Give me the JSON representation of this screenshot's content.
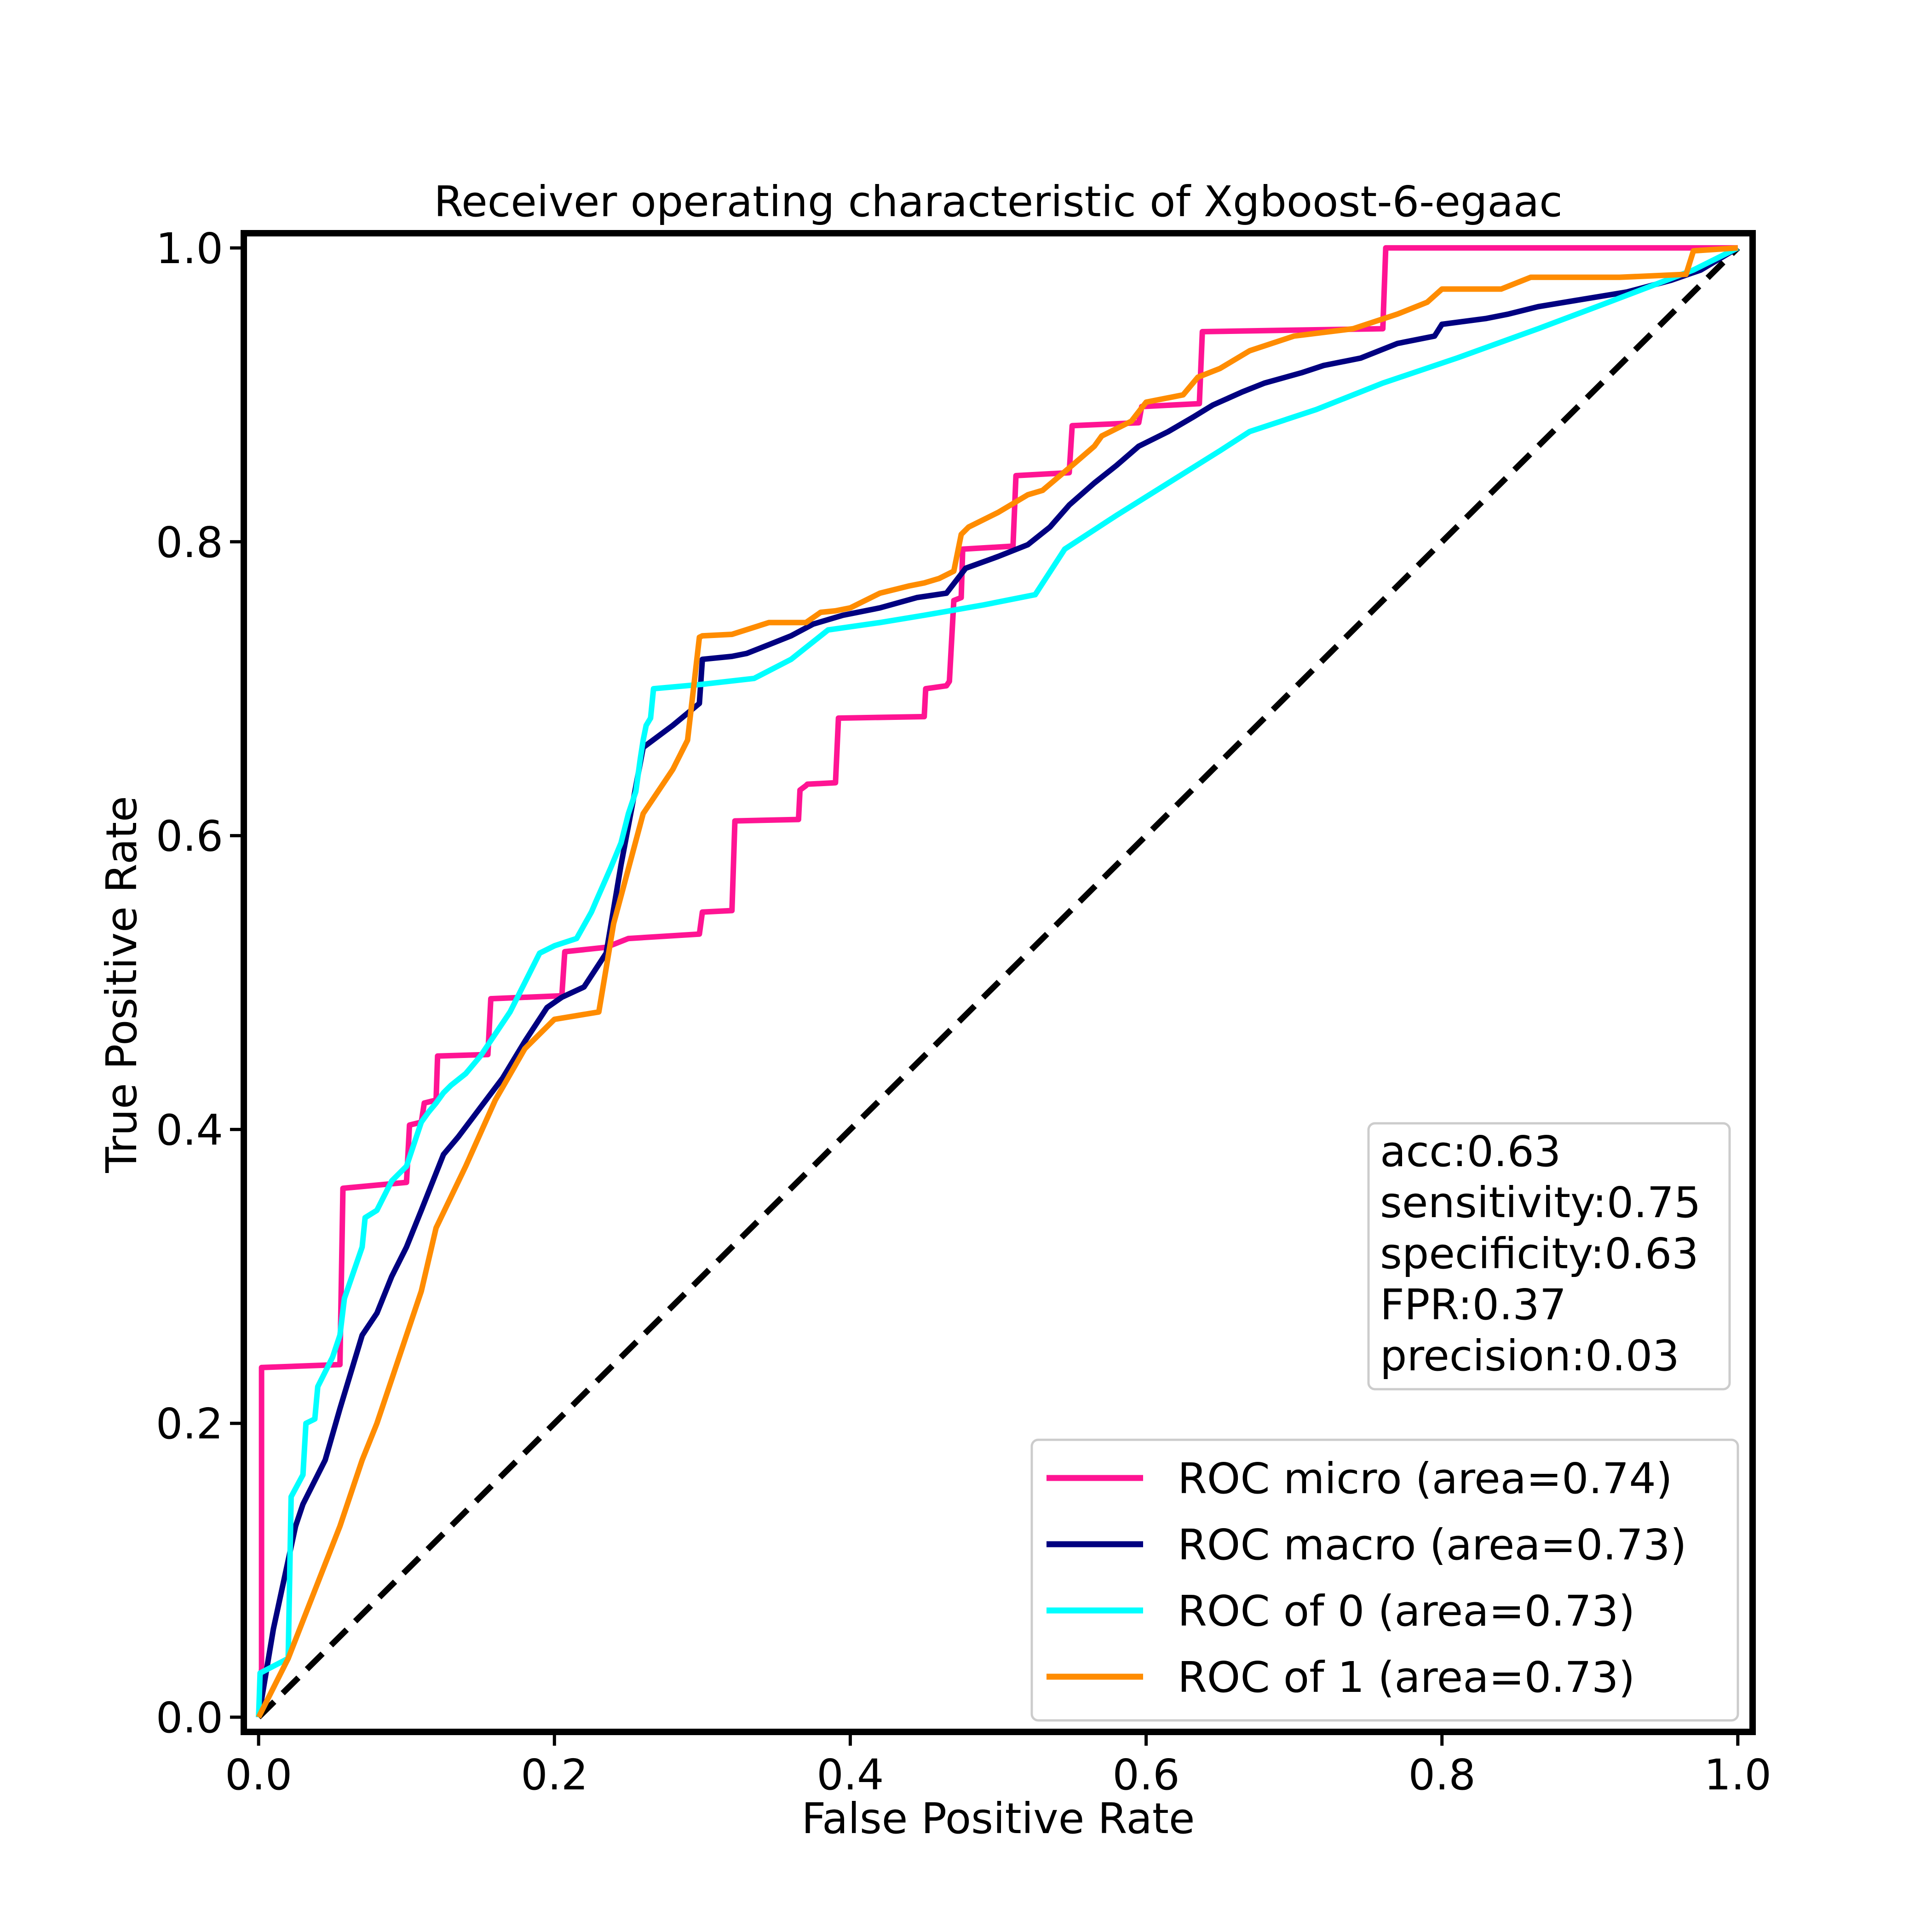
{
  "chart_data": {
    "type": "line",
    "title": "Receiver operating characteristic of Xgboost-6-egaac",
    "xlabel": "False Positive Rate",
    "ylabel": "True Positive Rate",
    "xlim": [
      -0.01,
      1.01
    ],
    "ylim": [
      -0.01,
      1.01
    ],
    "grid": false,
    "xticks": [
      "0.0",
      "0.2",
      "0.4",
      "0.6",
      "0.8",
      "1.0"
    ],
    "yticks": [
      "0.0",
      "0.2",
      "0.4",
      "0.6",
      "0.8",
      "1.0"
    ],
    "legend_position": "lower-right",
    "stats_box_position": "lower-right",
    "stats": [
      "acc:0.63",
      "sensitivity:0.75",
      "specificity:0.63",
      "FPR:0.37",
      "precision:0.03"
    ],
    "reference_line": {
      "x": [
        0,
        1
      ],
      "y": [
        0,
        1
      ],
      "color": "#000000",
      "style": "dashed"
    },
    "series": [
      {
        "name": "ROC micro (area=0.74)",
        "color": "#ff1493",
        "x": [
          0,
          0.002,
          0.002,
          0.055,
          0.057,
          0.1,
          0.102,
          0.11,
          0.112,
          0.12,
          0.121,
          0.155,
          0.157,
          0.205,
          0.207,
          0.235,
          0.25,
          0.298,
          0.3,
          0.32,
          0.322,
          0.365,
          0.366,
          0.37,
          0.371,
          0.39,
          0.392,
          0.45,
          0.451,
          0.465,
          0.467,
          0.47,
          0.475,
          0.476,
          0.51,
          0.512,
          0.548,
          0.55,
          0.595,
          0.597,
          0.636,
          0.638,
          0.76,
          0.762,
          1.0
        ],
        "y": [
          0,
          0.033,
          0.238,
          0.24,
          0.36,
          0.364,
          0.403,
          0.405,
          0.418,
          0.42,
          0.45,
          0.451,
          0.489,
          0.491,
          0.521,
          0.524,
          0.53,
          0.533,
          0.548,
          0.549,
          0.61,
          0.611,
          0.631,
          0.634,
          0.635,
          0.636,
          0.68,
          0.681,
          0.7,
          0.702,
          0.705,
          0.76,
          0.762,
          0.795,
          0.797,
          0.845,
          0.847,
          0.879,
          0.881,
          0.892,
          0.894,
          0.943,
          0.945,
          1.0,
          1.0
        ]
      },
      {
        "name": "ROC macro (area=0.73)",
        "color": "#000080",
        "x": [
          0,
          0.01,
          0.025,
          0.03,
          0.045,
          0.055,
          0.07,
          0.08,
          0.09,
          0.1,
          0.11,
          0.125,
          0.135,
          0.15,
          0.165,
          0.18,
          0.195,
          0.205,
          0.22,
          0.235,
          0.245,
          0.26,
          0.28,
          0.298,
          0.3,
          0.32,
          0.33,
          0.345,
          0.36,
          0.375,
          0.395,
          0.42,
          0.445,
          0.465,
          0.478,
          0.5,
          0.52,
          0.535,
          0.548,
          0.565,
          0.58,
          0.595,
          0.615,
          0.632,
          0.645,
          0.665,
          0.68,
          0.705,
          0.72,
          0.745,
          0.77,
          0.795,
          0.8,
          0.83,
          0.845,
          0.865,
          0.895,
          0.925,
          0.955,
          0.975,
          1.0
        ],
        "y": [
          0,
          0.06,
          0.13,
          0.145,
          0.175,
          0.21,
          0.26,
          0.275,
          0.3,
          0.32,
          0.345,
          0.383,
          0.395,
          0.415,
          0.435,
          0.46,
          0.483,
          0.49,
          0.497,
          0.52,
          0.58,
          0.66,
          0.675,
          0.69,
          0.72,
          0.722,
          0.724,
          0.73,
          0.736,
          0.744,
          0.75,
          0.755,
          0.762,
          0.765,
          0.782,
          0.79,
          0.798,
          0.81,
          0.825,
          0.84,
          0.852,
          0.865,
          0.875,
          0.885,
          0.893,
          0.902,
          0.908,
          0.915,
          0.92,
          0.925,
          0.935,
          0.94,
          0.948,
          0.952,
          0.955,
          0.96,
          0.965,
          0.97,
          0.978,
          0.985,
          1.0
        ]
      },
      {
        "name": "ROC of 0 (area=0.73)",
        "color": "#00ffff",
        "x": [
          0,
          0.001,
          0.02,
          0.022,
          0.03,
          0.032,
          0.038,
          0.04,
          0.05,
          0.055,
          0.058,
          0.07,
          0.072,
          0.08,
          0.09,
          0.095,
          0.1,
          0.105,
          0.11,
          0.115,
          0.12,
          0.125,
          0.13,
          0.14,
          0.15,
          0.16,
          0.17,
          0.18,
          0.19,
          0.2,
          0.215,
          0.225,
          0.228,
          0.238,
          0.245,
          0.25,
          0.255,
          0.258,
          0.26,
          0.262,
          0.265,
          0.267,
          0.3,
          0.335,
          0.36,
          0.385,
          0.42,
          0.45,
          0.49,
          0.525,
          0.545,
          0.58,
          0.615,
          0.65,
          0.67,
          0.715,
          0.76,
          0.81,
          0.865,
          0.91,
          0.97,
          1.0
        ],
        "y": [
          0,
          0.03,
          0.04,
          0.15,
          0.165,
          0.2,
          0.203,
          0.225,
          0.245,
          0.26,
          0.285,
          0.32,
          0.34,
          0.345,
          0.365,
          0.37,
          0.375,
          0.39,
          0.405,
          0.412,
          0.418,
          0.425,
          0.43,
          0.438,
          0.45,
          0.465,
          0.48,
          0.5,
          0.52,
          0.525,
          0.53,
          0.548,
          0.555,
          0.578,
          0.595,
          0.615,
          0.63,
          0.652,
          0.665,
          0.675,
          0.68,
          0.7,
          0.703,
          0.707,
          0.72,
          0.74,
          0.745,
          0.75,
          0.757,
          0.764,
          0.795,
          0.818,
          0.84,
          0.862,
          0.875,
          0.89,
          0.908,
          0.925,
          0.945,
          0.962,
          0.985,
          1.0
        ]
      },
      {
        "name": "ROC of 1 (area=0.73)",
        "color": "#ff8c00",
        "x": [
          0,
          0.02,
          0.055,
          0.07,
          0.08,
          0.09,
          0.1,
          0.11,
          0.12,
          0.14,
          0.16,
          0.18,
          0.2,
          0.23,
          0.24,
          0.26,
          0.28,
          0.29,
          0.298,
          0.3,
          0.32,
          0.345,
          0.37,
          0.38,
          0.39,
          0.4,
          0.42,
          0.44,
          0.45,
          0.46,
          0.47,
          0.475,
          0.48,
          0.5,
          0.52,
          0.53,
          0.55,
          0.565,
          0.57,
          0.58,
          0.59,
          0.6,
          0.625,
          0.635,
          0.65,
          0.67,
          0.7,
          0.74,
          0.77,
          0.79,
          0.8,
          0.84,
          0.86,
          0.92,
          0.965,
          0.97,
          1.0
        ],
        "y": [
          0,
          0.04,
          0.13,
          0.175,
          0.2,
          0.23,
          0.26,
          0.29,
          0.333,
          0.375,
          0.42,
          0.455,
          0.475,
          0.48,
          0.54,
          0.615,
          0.645,
          0.665,
          0.735,
          0.736,
          0.737,
          0.745,
          0.745,
          0.752,
          0.753,
          0.755,
          0.765,
          0.77,
          0.772,
          0.775,
          0.78,
          0.805,
          0.81,
          0.82,
          0.832,
          0.835,
          0.852,
          0.865,
          0.872,
          0.877,
          0.882,
          0.895,
          0.9,
          0.912,
          0.918,
          0.93,
          0.94,
          0.945,
          0.955,
          0.963,
          0.972,
          0.972,
          0.98,
          0.98,
          0.982,
          0.998,
          1.0
        ]
      }
    ]
  }
}
